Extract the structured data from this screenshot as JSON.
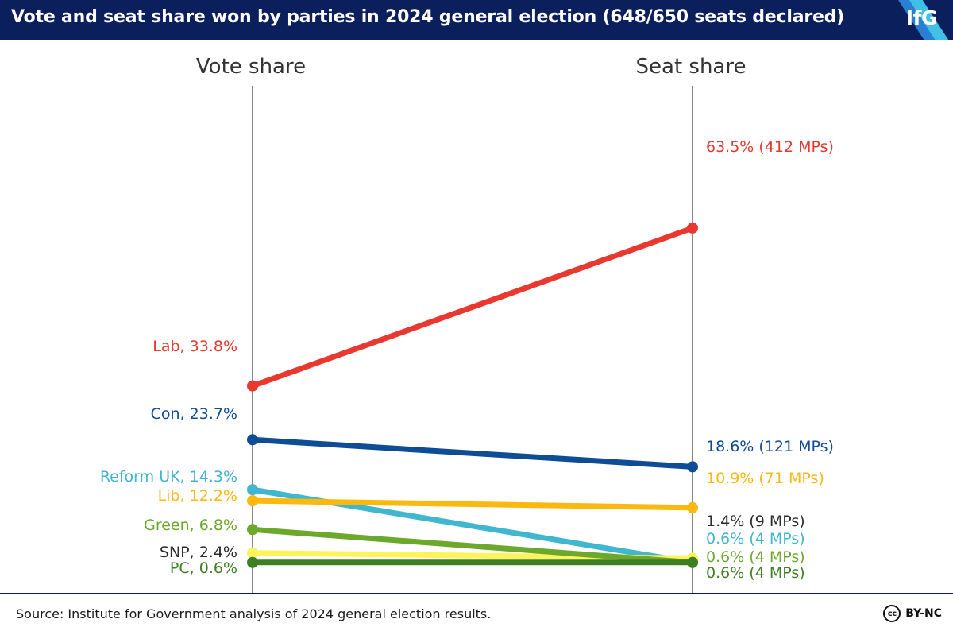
{
  "header": {
    "title": "Vote and seat share won by parties in 2024 general election (648/650 seats declared)",
    "logo": "IfG"
  },
  "footer": {
    "source": "Source: Institute for Government analysis of 2024 general election results.",
    "license_icon": "cc-icon",
    "license_text": "BY-NC",
    "cc_glyph": "cc"
  },
  "chart_data": {
    "type": "slope",
    "title": "Vote and seat share won by parties in 2024 general election (648/650 seats declared)",
    "axes": [
      {
        "key": "vote",
        "label": "Vote share"
      },
      {
        "key": "seat",
        "label": "Seat share"
      }
    ],
    "ylim": [
      0,
      70
    ],
    "units": "%",
    "series": [
      {
        "name": "Lab",
        "color": "#e8382f",
        "vote": 33.8,
        "seat": 63.5,
        "vote_label": "Lab, 33.8%",
        "seat_label": "63.5% (412 MPs)"
      },
      {
        "name": "Con",
        "color": "#0f4c96",
        "vote": 23.7,
        "seat": 18.6,
        "vote_label": "Con, 23.7%",
        "seat_label": "18.6% (121 MPs)"
      },
      {
        "name": "Reform UK",
        "color": "#41b6cf",
        "vote": 14.3,
        "seat": 0.6,
        "vote_label": "Reform UK, 14.3%",
        "seat_label": "0.6% (4 MPs)"
      },
      {
        "name": "Lib",
        "color": "#fbb80f",
        "vote": 12.2,
        "seat": 10.9,
        "vote_label": "Lib, 12.2%",
        "seat_label": "10.9% (71 MPs)"
      },
      {
        "name": "Green",
        "color": "#6ca82b",
        "vote": 6.8,
        "seat": 0.6,
        "vote_label": "Green, 6.8%",
        "seat_label": "0.6% (4 MPs)"
      },
      {
        "name": "SNP",
        "color": "#fdf35a",
        "label_color": "#2b2b2b",
        "vote": 2.4,
        "seat": 1.4,
        "vote_label": "SNP, 2.4%",
        "seat_label": "1.4% (9 MPs)"
      },
      {
        "name": "PC",
        "color": "#3f7f23",
        "vote": 0.6,
        "seat": 0.6,
        "vote_label": "PC, 0.6%",
        "seat_label": "0.6% (4 MPs)"
      }
    ]
  }
}
